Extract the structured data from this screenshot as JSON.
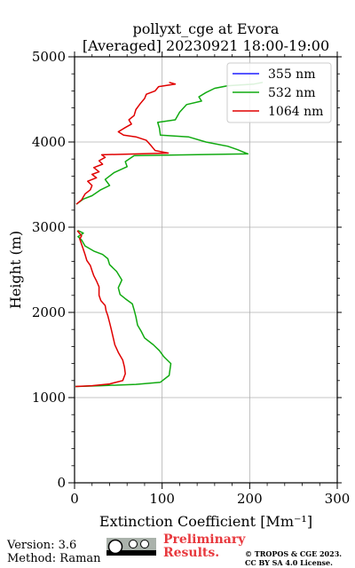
{
  "chart_data": {
    "type": "line",
    "title": "pollyxt_cge at Evora",
    "subtitle": "[Averaged] 20230921 18:00-19:00",
    "xlabel": "Extinction Coefficient [Mm⁻¹]",
    "ylabel": "Height (m)",
    "xlim": [
      0,
      300
    ],
    "ylim": [
      0,
      5000
    ],
    "xticks": [
      0,
      100,
      200,
      300
    ],
    "yticks": [
      0,
      1000,
      2000,
      3000,
      4000,
      5000
    ],
    "grid": true,
    "legend_position": "top-right",
    "series": [
      {
        "name": "355 nm",
        "color": "#1f1fff",
        "points": []
      },
      {
        "name": "532 nm",
        "color": "#11aa11",
        "points": [
          [
            1,
            1130
          ],
          [
            30,
            1140
          ],
          [
            70,
            1155
          ],
          [
            98,
            1180
          ],
          [
            108,
            1260
          ],
          [
            110,
            1400
          ],
          [
            102,
            1480
          ],
          [
            97,
            1550
          ],
          [
            90,
            1620
          ],
          [
            80,
            1700
          ],
          [
            76,
            1780
          ],
          [
            72,
            1850
          ],
          [
            70,
            1950
          ],
          [
            68,
            2030
          ],
          [
            66,
            2100
          ],
          [
            58,
            2160
          ],
          [
            52,
            2210
          ],
          [
            50,
            2290
          ],
          [
            54,
            2380
          ],
          [
            48,
            2480
          ],
          [
            40,
            2560
          ],
          [
            38,
            2630
          ],
          [
            32,
            2680
          ],
          [
            22,
            2720
          ],
          [
            12,
            2780
          ],
          [
            8,
            2850
          ],
          [
            4,
            2890
          ],
          [
            10,
            2930
          ],
          [
            4,
            2960
          ],
          [
            2,
            3270
          ],
          [
            10,
            3330
          ],
          [
            20,
            3370
          ],
          [
            30,
            3440
          ],
          [
            40,
            3490
          ],
          [
            35,
            3560
          ],
          [
            45,
            3640
          ],
          [
            60,
            3710
          ],
          [
            58,
            3770
          ],
          [
            68,
            3840
          ],
          [
            198,
            3860
          ],
          [
            186,
            3910
          ],
          [
            175,
            3950
          ],
          [
            150,
            4000
          ],
          [
            130,
            4060
          ],
          [
            98,
            4080
          ],
          [
            97,
            4160
          ],
          [
            95,
            4230
          ],
          [
            115,
            4260
          ],
          [
            120,
            4350
          ],
          [
            128,
            4440
          ],
          [
            145,
            4480
          ],
          [
            142,
            4530
          ],
          [
            150,
            4580
          ],
          [
            160,
            4630
          ],
          [
            175,
            4660
          ],
          [
            205,
            4680
          ],
          [
            215,
            4700
          ]
        ]
      },
      {
        "name": "1064 nm",
        "color": "#e00000",
        "points": [
          [
            1,
            1130
          ],
          [
            20,
            1140
          ],
          [
            40,
            1160
          ],
          [
            55,
            1200
          ],
          [
            58,
            1280
          ],
          [
            57,
            1360
          ],
          [
            55,
            1440
          ],
          [
            50,
            1530
          ],
          [
            46,
            1620
          ],
          [
            44,
            1710
          ],
          [
            42,
            1800
          ],
          [
            40,
            1880
          ],
          [
            38,
            1960
          ],
          [
            36,
            2020
          ],
          [
            35,
            2080
          ],
          [
            30,
            2140
          ],
          [
            28,
            2200
          ],
          [
            28,
            2300
          ],
          [
            25,
            2370
          ],
          [
            22,
            2430
          ],
          [
            20,
            2490
          ],
          [
            18,
            2550
          ],
          [
            14,
            2610
          ],
          [
            12,
            2680
          ],
          [
            10,
            2740
          ],
          [
            8,
            2800
          ],
          [
            6,
            2860
          ],
          [
            8,
            2900
          ],
          [
            3,
            2960
          ],
          [
            2,
            3270
          ],
          [
            8,
            3320
          ],
          [
            12,
            3390
          ],
          [
            18,
            3440
          ],
          [
            20,
            3490
          ],
          [
            15,
            3540
          ],
          [
            25,
            3580
          ],
          [
            20,
            3620
          ],
          [
            28,
            3650
          ],
          [
            22,
            3700
          ],
          [
            32,
            3740
          ],
          [
            28,
            3780
          ],
          [
            35,
            3820
          ],
          [
            31,
            3850
          ],
          [
            107,
            3870
          ],
          [
            92,
            3900
          ],
          [
            88,
            3950
          ],
          [
            82,
            4020
          ],
          [
            70,
            4060
          ],
          [
            56,
            4080
          ],
          [
            50,
            4120
          ],
          [
            58,
            4170
          ],
          [
            65,
            4210
          ],
          [
            62,
            4260
          ],
          [
            68,
            4310
          ],
          [
            70,
            4380
          ],
          [
            75,
            4450
          ],
          [
            80,
            4510
          ],
          [
            82,
            4560
          ],
          [
            92,
            4600
          ],
          [
            96,
            4650
          ],
          [
            115,
            4680
          ],
          [
            108,
            4700
          ]
        ]
      }
    ]
  },
  "footer": {
    "version": "Version: 3.6",
    "method": "Method: Raman",
    "preliminary": "Preliminary Results.",
    "copyright_line1": "© TROPOS & CGE 2023.",
    "copyright_line2": "CC BY SA 4.0 License."
  }
}
